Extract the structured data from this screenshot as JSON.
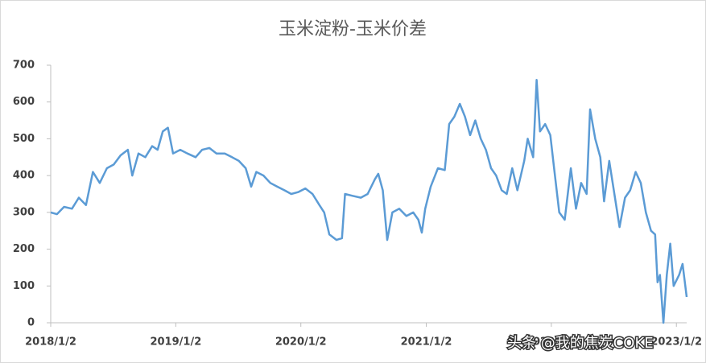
{
  "chart_data": {
    "type": "line",
    "title": "玉米淀粉-玉米价差",
    "watermark": "头条 @我的焦炭COKE",
    "xlim": [
      "2018/1/2",
      "2023/2/1"
    ],
    "xticks": [
      "2018/1/2",
      "2019/1/2",
      "2020/1/2",
      "2021/1/2",
      "2022/1/2",
      "2023/1/2"
    ],
    "ylim": [
      0,
      700
    ],
    "yticks": [
      0,
      100,
      200,
      300,
      400,
      500,
      600,
      700
    ],
    "x": [
      "2018/1/2",
      "2018/1/20",
      "2018/2/10",
      "2018/3/5",
      "2018/3/25",
      "2018/4/15",
      "2018/5/5",
      "2018/5/25",
      "2018/6/15",
      "2018/7/5",
      "2018/7/25",
      "2018/8/15",
      "2018/8/28",
      "2018/9/15",
      "2018/10/5",
      "2018/10/25",
      "2018/11/10",
      "2018/11/25",
      "2018/12/10",
      "2018/12/25",
      "2019/1/15",
      "2019/2/5",
      "2019/3/1",
      "2019/3/20",
      "2019/4/10",
      "2019/5/1",
      "2019/5/25",
      "2019/6/15",
      "2019/7/5",
      "2019/7/25",
      "2019/8/10",
      "2019/8/25",
      "2019/9/15",
      "2019/10/5",
      "2019/10/25",
      "2019/11/15",
      "2019/12/5",
      "2019/12/25",
      "2020/1/15",
      "2020/2/5",
      "2020/2/25",
      "2020/3/10",
      "2020/3/25",
      "2020/4/15",
      "2020/5/1",
      "2020/5/10",
      "2020/6/1",
      "2020/6/25",
      "2020/7/15",
      "2020/8/5",
      "2020/8/15",
      "2020/8/28",
      "2020/9/10",
      "2020/9/25",
      "2020/10/15",
      "2020/11/5",
      "2020/11/25",
      "2020/12/10",
      "2020/12/20",
      "2020/12/30",
      "2021/1/15",
      "2021/2/5",
      "2021/2/25",
      "2021/3/10",
      "2021/3/25",
      "2021/4/10",
      "2021/4/25",
      "2021/5/10",
      "2021/5/25",
      "2021/6/10",
      "2021/6/25",
      "2021/7/10",
      "2021/7/25",
      "2021/8/10",
      "2021/8/25",
      "2021/9/10",
      "2021/9/25",
      "2021/10/15",
      "2021/10/25",
      "2021/11/10",
      "2021/11/20",
      "2021/11/30",
      "2021/12/15",
      "2021/12/30",
      "2022/1/10",
      "2022/1/25",
      "2022/2/10",
      "2022/2/28",
      "2022/3/15",
      "2022/3/30",
      "2022/4/15",
      "2022/4/25",
      "2022/5/10",
      "2022/5/25",
      "2022/6/5",
      "2022/6/20",
      "2022/7/5",
      "2022/7/20",
      "2022/8/5",
      "2022/8/20",
      "2022/9/5",
      "2022/9/20",
      "2022/10/5",
      "2022/10/20",
      "2022/11/1",
      "2022/11/8",
      "2022/11/15",
      "2022/11/25",
      "2022/12/5",
      "2022/12/15",
      "2022/12/25",
      "2023/1/10",
      "2023/1/20",
      "2023/2/1"
    ],
    "series": [
      {
        "color": "#5b9bd5",
        "values": [
          300,
          295,
          315,
          310,
          340,
          320,
          410,
          380,
          420,
          430,
          455,
          470,
          400,
          460,
          450,
          480,
          470,
          520,
          530,
          460,
          470,
          460,
          450,
          470,
          475,
          460,
          460,
          450,
          440,
          420,
          370,
          410,
          400,
          380,
          370,
          360,
          350,
          355,
          365,
          350,
          320,
          300,
          240,
          225,
          230,
          350,
          345,
          340,
          350,
          390,
          405,
          360,
          225,
          300,
          310,
          290,
          300,
          280,
          245,
          310,
          370,
          420,
          415,
          540,
          560,
          595,
          560,
          510,
          550,
          500,
          470,
          420,
          400,
          360,
          350,
          420,
          360,
          440,
          500,
          450,
          660,
          520,
          540,
          510,
          420,
          300,
          280,
          420,
          310,
          380,
          350,
          580,
          500,
          450,
          330,
          440,
          350,
          260,
          340,
          360,
          410,
          380,
          300,
          250,
          240,
          110,
          130,
          0,
          130,
          215,
          100,
          130,
          160,
          70
        ]
      }
    ]
  }
}
